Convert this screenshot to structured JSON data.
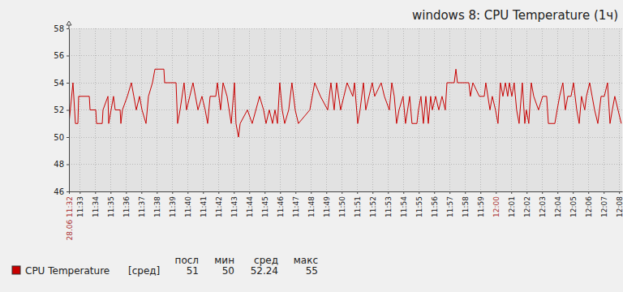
{
  "chart_data": {
    "type": "line",
    "title": "windows 8: CPU Temperature (1ч)",
    "xlim": [
      692.3,
      728.2
    ],
    "xticks": [
      {
        "value": 692.3,
        "label": "28.06 11:32"
      },
      {
        "value": 693,
        "label": "11:33"
      },
      {
        "value": 694,
        "label": "11:34"
      },
      {
        "value": 695,
        "label": "11:35"
      },
      {
        "value": 696,
        "label": "11:36"
      },
      {
        "value": 697,
        "label": "11:37"
      },
      {
        "value": 698,
        "label": "11:38"
      },
      {
        "value": 699,
        "label": "11:39"
      },
      {
        "value": 700,
        "label": "11:40"
      },
      {
        "value": 701,
        "label": "11:41"
      },
      {
        "value": 702,
        "label": "11:42"
      },
      {
        "value": 703,
        "label": "11:43"
      },
      {
        "value": 704,
        "label": "11:44"
      },
      {
        "value": 705,
        "label": "11:45"
      },
      {
        "value": 706,
        "label": "11:46"
      },
      {
        "value": 707,
        "label": "11:47"
      },
      {
        "value": 708,
        "label": "11:48"
      },
      {
        "value": 709,
        "label": "11:49"
      },
      {
        "value": 710,
        "label": "11:50"
      },
      {
        "value": 711,
        "label": "11:51"
      },
      {
        "value": 712,
        "label": "11:52"
      },
      {
        "value": 713,
        "label": "11:53"
      },
      {
        "value": 714,
        "label": "11:54"
      },
      {
        "value": 715,
        "label": "11:55"
      },
      {
        "value": 716,
        "label": "11:56"
      },
      {
        "value": 717,
        "label": "11:57"
      },
      {
        "value": 718,
        "label": "11:58"
      },
      {
        "value": 719,
        "label": "11:59"
      },
      {
        "value": 720,
        "label": "12:00"
      },
      {
        "value": 721,
        "label": "12:01"
      },
      {
        "value": 722,
        "label": "12:02"
      },
      {
        "value": 723,
        "label": "12:03"
      },
      {
        "value": 724,
        "label": "12:04"
      },
      {
        "value": 725,
        "label": "12:05"
      },
      {
        "value": 726,
        "label": "12:06"
      },
      {
        "value": 727,
        "label": "12:07"
      },
      {
        "value": 728,
        "label": "12:08"
      }
    ],
    "ylim": [
      46,
      58
    ],
    "yticks": [
      46,
      48,
      50,
      52,
      54,
      56,
      58
    ],
    "grid": true,
    "legend": "bottom",
    "x": [
      692.3,
      692.56,
      692.72,
      692.88,
      692.93,
      693.62,
      693.67,
      694.04,
      694.09,
      694.46,
      694.51,
      694.83,
      694.88,
      695.19,
      695.3,
      695.62,
      695.67,
      695.77,
      696.09,
      696.35,
      696.51,
      696.67,
      696.88,
      697.04,
      697.3,
      697.46,
      697.72,
      697.88,
      698.46,
      698.51,
      699.25,
      699.35,
      699.51,
      699.77,
      699.93,
      700.14,
      700.35,
      700.51,
      700.67,
      700.93,
      701.14,
      701.3,
      701.46,
      701.83,
      701.93,
      702.14,
      702.3,
      702.56,
      702.83,
      703.04,
      703.14,
      703.3,
      703.41,
      703.88,
      704.19,
      704.67,
      704.93,
      705.09,
      705.3,
      705.51,
      705.67,
      705.83,
      705.98,
      706.14,
      706.3,
      706.56,
      706.77,
      706.98,
      707.19,
      707.93,
      708.25,
      708.62,
      709.09,
      709.3,
      709.51,
      709.67,
      709.93,
      710.14,
      710.35,
      710.72,
      710.83,
      711.04,
      711.19,
      711.41,
      711.56,
      711.77,
      711.98,
      712.14,
      712.56,
      712.77,
      713.09,
      713.25,
      713.41,
      713.56,
      713.72,
      713.98,
      714.14,
      714.41,
      714.56,
      714.88,
      714.98,
      715.14,
      715.3,
      715.46,
      715.62,
      715.77,
      715.88,
      716.09,
      716.3,
      716.51,
      716.72,
      716.83,
      717.3,
      717.41,
      717.51,
      718.25,
      718.35,
      718.51,
      718.93,
      719.25,
      719.35,
      719.62,
      719.77,
      719.98,
      720.14,
      720.3,
      720.46,
      720.62,
      720.77,
      720.88,
      721.04,
      721.19,
      721.35,
      721.51,
      721.72,
      721.88,
      721.98,
      722.14,
      722.3,
      722.46,
      722.77,
      723.04,
      723.3,
      723.41,
      723.83,
      723.98,
      724.14,
      724.35,
      724.51,
      724.67,
      724.88,
      725.04,
      725.25,
      725.41,
      725.56,
      725.77,
      725.88,
      726.09,
      726.25,
      726.41,
      726.62,
      726.83,
      727.04,
      727.25,
      727.41,
      727.56,
      727.72,
      727.93,
      728.14
    ],
    "series": [
      {
        "name": "CPU Temperature",
        "color": "#c80000",
        "line_style": "solid",
        "values": [
          51,
          54,
          51,
          51,
          53,
          53,
          52,
          52,
          51,
          51,
          52,
          53,
          51,
          53,
          52,
          52,
          51,
          52,
          53,
          54,
          53,
          52,
          53,
          52,
          51,
          53,
          54,
          55,
          55,
          54,
          54,
          51,
          52,
          54,
          52,
          53,
          54,
          53,
          52,
          53,
          52,
          51,
          53,
          53,
          54,
          52,
          54,
          53,
          51,
          54,
          51,
          50,
          51,
          52,
          51,
          53,
          52,
          51,
          52,
          51,
          52,
          51,
          54,
          52,
          51,
          52,
          54,
          52,
          51,
          52,
          54,
          53,
          52,
          54,
          52,
          54,
          52,
          53,
          54,
          53,
          54,
          51,
          52,
          54,
          52,
          53,
          54,
          53,
          54,
          53,
          52,
          54,
          53,
          51,
          52,
          53,
          51,
          53,
          51,
          51,
          52,
          53,
          51,
          53,
          51,
          53,
          52,
          53,
          52,
          53,
          52,
          54,
          54,
          55,
          54,
          54,
          53,
          54,
          53,
          53,
          54,
          52,
          53,
          52,
          51,
          54,
          53,
          54,
          53,
          54,
          53,
          54,
          52,
          51,
          54,
          51,
          52,
          51,
          54,
          53,
          52,
          53,
          53,
          51,
          51,
          52,
          53,
          54,
          52,
          53,
          53,
          54,
          52,
          51,
          53,
          52,
          53,
          54,
          53,
          52,
          51,
          53,
          53,
          54,
          51,
          52,
          53,
          52,
          51
        ]
      }
    ],
    "summary": {
      "function": "[сред]",
      "headers": [
        "посл",
        "мин",
        "сред",
        "макс"
      ],
      "values": [
        51,
        50,
        52.24,
        55
      ]
    }
  }
}
